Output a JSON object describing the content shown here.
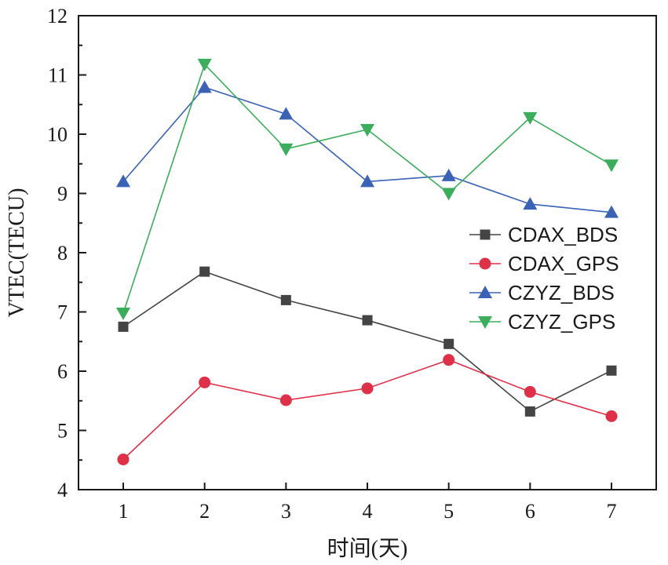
{
  "chart_data": {
    "type": "line",
    "xlabel": "时间(天)",
    "ylabel": "VTEC(TECU)",
    "x": [
      1,
      2,
      3,
      4,
      5,
      6,
      7
    ],
    "xlim": [
      0.45,
      7.55
    ],
    "ylim": [
      4,
      12
    ],
    "xticks": [
      "1",
      "2",
      "3",
      "4",
      "5",
      "6",
      "7"
    ],
    "yticks": [
      "4",
      "5",
      "6",
      "7",
      "8",
      "9",
      "10",
      "11",
      "12"
    ],
    "legend_position": "right",
    "grid": false,
    "series": [
      {
        "name": "CDAX_BDS",
        "marker": "square",
        "color": "#444444",
        "values": [
          6.75,
          7.68,
          7.2,
          6.86,
          6.46,
          5.32,
          6.01
        ]
      },
      {
        "name": "CDAX_GPS",
        "marker": "circle",
        "color": "#e03048",
        "values": [
          4.51,
          5.81,
          5.51,
          5.71,
          6.19,
          5.65,
          5.24
        ]
      },
      {
        "name": "CZYZ_BDS",
        "marker": "triangle-up",
        "color": "#3a63b8",
        "values": [
          9.2,
          10.79,
          10.34,
          9.2,
          9.3,
          8.82,
          8.68
        ]
      },
      {
        "name": "CZYZ_GPS",
        "marker": "triangle-down",
        "color": "#3aae5a",
        "values": [
          6.98,
          11.18,
          9.75,
          10.08,
          9.0,
          10.28,
          9.48
        ]
      }
    ]
  }
}
